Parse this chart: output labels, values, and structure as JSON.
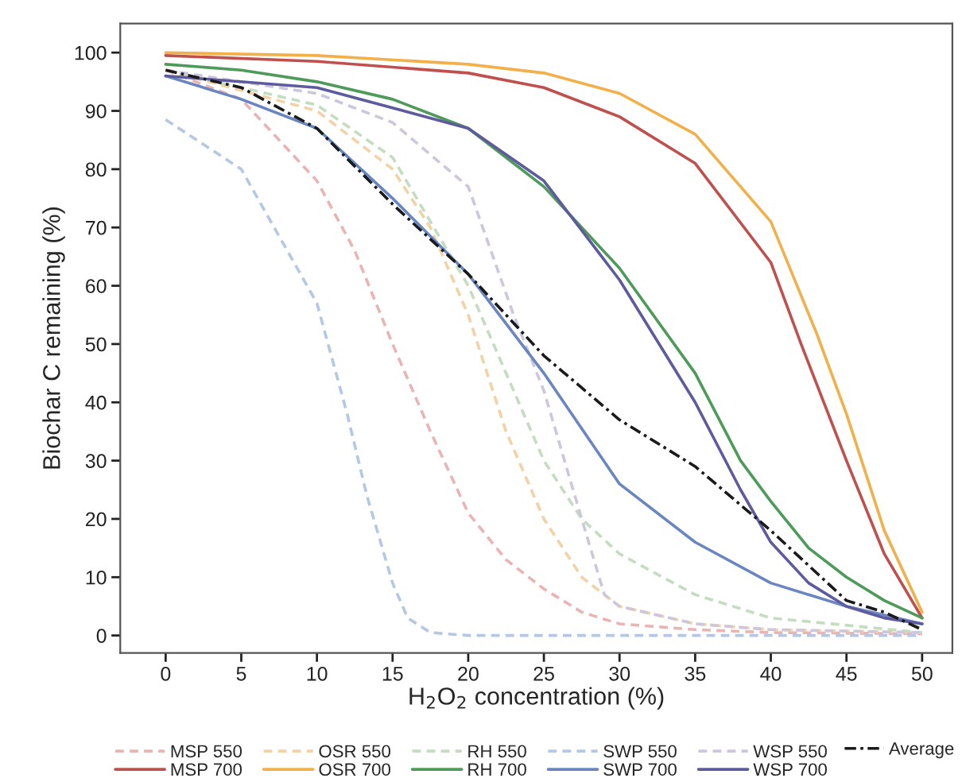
{
  "chart_data": {
    "type": "line",
    "xlabel": "H$_{2}$O$_{2}$ concentration (%)",
    "ylabel": "Biochar C remaining (%)",
    "xlim": [
      -3,
      52
    ],
    "ylim": [
      -3,
      105
    ],
    "xticks": [
      0,
      5,
      10,
      15,
      20,
      25,
      30,
      35,
      40,
      45,
      50
    ],
    "yticks": [
      0,
      10,
      20,
      30,
      40,
      50,
      60,
      70,
      80,
      90,
      100
    ],
    "grid": false,
    "legend": "bottom",
    "marker": "none",
    "series": [
      {
        "name": "MSP 550",
        "color": "#eab4b4",
        "line_style": "dashed",
        "x": [
          0,
          5,
          10,
          12.5,
          15,
          17.5,
          20,
          22.5,
          25,
          27.5,
          30,
          35,
          40,
          50
        ],
        "values": [
          97,
          92,
          78,
          66,
          50,
          35,
          21,
          13,
          8,
          4,
          2,
          1,
          0.5,
          0.3
        ]
      },
      {
        "name": "OSR 550",
        "color": "#f2d2a6",
        "line_style": "dashed",
        "x": [
          0,
          10,
          15,
          17.5,
          20,
          22.5,
          25,
          27.5,
          30,
          35,
          40,
          50
        ],
        "values": [
          97,
          90,
          80,
          70,
          55,
          35,
          20,
          10,
          5,
          2,
          1,
          0.5
        ]
      },
      {
        "name": "RH 550",
        "color": "#c4dcc0",
        "line_style": "dashed",
        "x": [
          0,
          10,
          15,
          20,
          22.5,
          25,
          27.5,
          30,
          35,
          40,
          50
        ],
        "values": [
          97,
          91,
          82,
          60,
          45,
          30,
          20,
          14,
          7,
          3,
          0.5
        ]
      },
      {
        "name": "SWP 550",
        "color": "#b4c8e6",
        "line_style": "dashed",
        "x": [
          0,
          5,
          10,
          12,
          13.3,
          15,
          16,
          17.5,
          20,
          50
        ],
        "values": [
          88.5,
          80,
          57,
          38,
          24,
          9,
          3,
          0.5,
          0,
          0
        ]
      },
      {
        "name": "WSP 550",
        "color": "#cdc6dc",
        "line_style": "dashed",
        "x": [
          0,
          10,
          15,
          20,
          23,
          25,
          27.5,
          29,
          30,
          35,
          40,
          50
        ],
        "values": [
          97,
          93,
          88,
          77,
          55,
          42,
          20,
          7,
          5,
          2,
          1,
          0.5
        ]
      },
      {
        "name": "MSP 700",
        "color": "#c0504d",
        "line_style": "solid",
        "x": [
          0,
          10,
          20,
          25,
          30,
          35,
          40,
          42,
          45,
          47.5,
          50
        ],
        "values": [
          99.5,
          98.5,
          96.5,
          94,
          89,
          81,
          64,
          50,
          30,
          14,
          3
        ]
      },
      {
        "name": "OSR 700",
        "color": "#f2b04a",
        "line_style": "solid",
        "x": [
          0,
          10,
          20,
          25,
          30,
          35,
          40,
          43,
          45,
          47.5,
          50
        ],
        "values": [
          100,
          99.5,
          98,
          96.5,
          93,
          86,
          71,
          52,
          38,
          18,
          4
        ]
      },
      {
        "name": "RH 700",
        "color": "#4e9a5a",
        "line_style": "solid",
        "x": [
          0,
          5,
          10,
          15,
          20,
          25,
          30,
          35,
          38,
          40,
          42.5,
          45,
          47.5,
          50
        ],
        "values": [
          98,
          97,
          95,
          92,
          87,
          77,
          63,
          45,
          30,
          23,
          15,
          10,
          6,
          3
        ]
      },
      {
        "name": "SWP 700",
        "color": "#6a86c0",
        "line_style": "solid",
        "x": [
          0,
          5,
          10,
          15,
          20,
          25,
          30,
          35,
          40,
          45,
          50
        ],
        "values": [
          96,
          92,
          87,
          75,
          62,
          45,
          26,
          16,
          9,
          5,
          2
        ]
      },
      {
        "name": "WSP 700",
        "color": "#5e5a9e",
        "line_style": "solid",
        "x": [
          0,
          10,
          20,
          25,
          30,
          35,
          38,
          40,
          42.5,
          45,
          47.5,
          50
        ],
        "values": [
          96,
          94,
          87,
          78,
          61,
          40,
          25,
          16,
          9,
          5,
          3,
          2
        ]
      },
      {
        "name": "Average",
        "color": "#1a1a1a",
        "line_style": "dashdot",
        "x": [
          0,
          5,
          10,
          15,
          20,
          25,
          30,
          35,
          40,
          45,
          47.5,
          50
        ],
        "values": [
          97,
          94,
          87,
          74,
          62,
          48,
          37,
          29,
          18,
          6,
          4,
          1
        ]
      }
    ]
  }
}
